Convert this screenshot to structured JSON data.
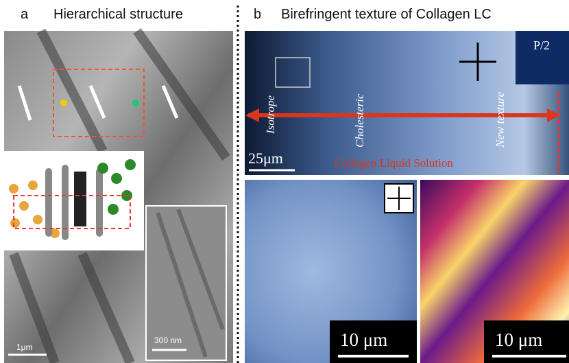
{
  "panel_a": {
    "letter": "a",
    "title": "Hierarchical structure",
    "scale_main": "1μm",
    "scale_inset": "300 nm"
  },
  "panel_b": {
    "letter": "b",
    "title": "Birefringent texture of Collagen LC",
    "top": {
      "labels": [
        "Isotrope",
        "Cholesteric",
        "New texture"
      ],
      "scale": "25μm",
      "caption": "Collagen Liquid Solution",
      "inset": "P/2"
    },
    "bottom_left": {
      "scale": "10 μm"
    },
    "bottom_right": {
      "scale": "10 μm"
    }
  }
}
